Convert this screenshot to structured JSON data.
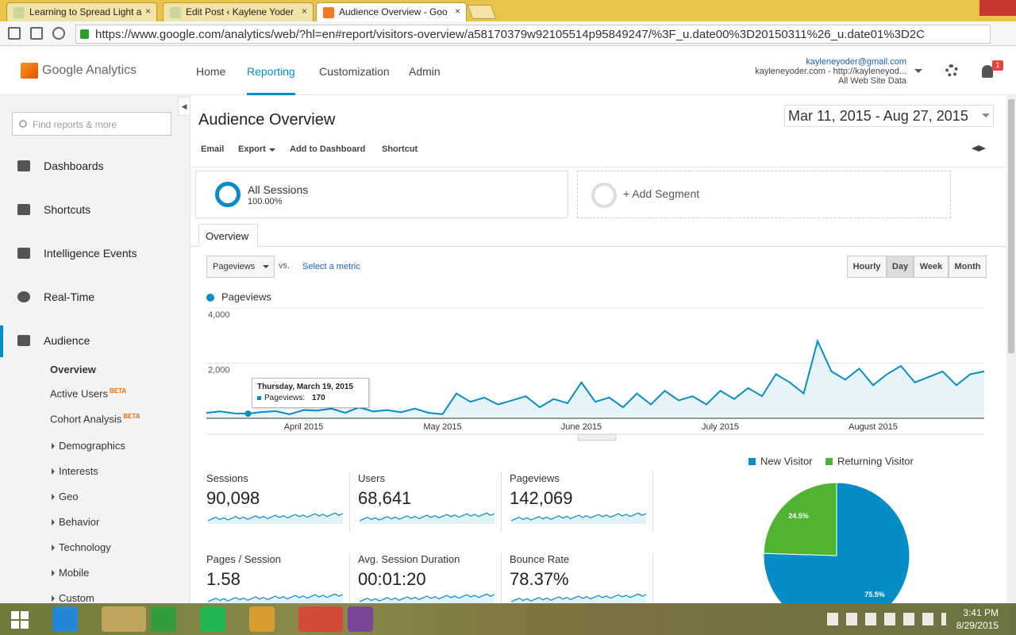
{
  "browser": {
    "tabs": [
      "Learning to Spread Light a",
      "Edit Post ‹ Kaylene Yoder",
      "Audience Overview - Goo"
    ],
    "url": "https://www.google.com/analytics/web/?hl=en#report/visitors-overview/a58170379w92105514p95849247/%3F_u.date00%3D20150311%26_u.date01%3D2C"
  },
  "header": {
    "logo": "Google Analytics",
    "nav": [
      "Home",
      "Reporting",
      "Customization",
      "Admin"
    ],
    "email": "kayleneyoder@gmail.com",
    "property": "kayleneyoder.com - http://kayleneyod...",
    "view": "All Web Site Data",
    "notifications": "1"
  },
  "sidebar": {
    "search": "Find reports & more",
    "items": [
      "Dashboards",
      "Shortcuts",
      "Intelligence Events",
      "Real-Time",
      "Audience"
    ],
    "subitems": [
      {
        "label": "Overview"
      },
      {
        "label": "Active Users",
        "badge": "BETA"
      },
      {
        "label": "Cohort Analysis",
        "badge": "BETA"
      },
      {
        "label": "Demographics"
      },
      {
        "label": "Interests"
      },
      {
        "label": "Geo"
      },
      {
        "label": "Behavior"
      },
      {
        "label": "Technology"
      },
      {
        "label": "Mobile"
      },
      {
        "label": "Custom"
      }
    ]
  },
  "report": {
    "title": "Audience Overview",
    "date_range": "Mar 11, 2015 - Aug 27, 2015",
    "actions": [
      "Email",
      "Export",
      "Add to Dashboard",
      "Shortcut"
    ],
    "segment": {
      "name": "All Sessions",
      "share": "100.00%"
    },
    "add_segment": "+ Add Segment",
    "tab": "Overview",
    "metric": "Pageviews",
    "vs": "vs.",
    "select_metric": "Select a metric",
    "granularity": [
      "Hourly",
      "Day",
      "Week",
      "Month"
    ],
    "tooltip": {
      "date": "Thursday, March 19, 2015",
      "label": "Pageviews:"
    },
    "metrics": [
      {
        "label": "Sessions",
        "value": "90,098"
      },
      {
        "label": "Users",
        "value": "68,641"
      },
      {
        "label": "Pageviews",
        "value": "142,069"
      },
      {
        "label": "Pages / Session",
        "value": "1.58"
      },
      {
        "label": "Avg. Session Duration",
        "value": "00:01:20"
      },
      {
        "label": "Bounce Rate",
        "value": "78.37%"
      }
    ]
  },
  "chart_data": [
    {
      "type": "line",
      "categories": [
        null,
        null,
        null,
        null,
        null,
        null,
        null,
        "April 2015",
        null,
        null,
        null,
        null,
        null,
        null,
        null,
        null,
        null,
        "May 2015",
        null,
        null,
        null,
        null,
        null,
        null,
        null,
        null,
        null,
        "June 2015",
        null,
        null,
        null,
        null,
        null,
        null,
        null,
        null,
        null,
        "July 2015",
        null,
        null,
        null,
        null,
        null,
        null,
        null,
        null,
        null,
        null,
        "August 2015",
        null,
        null,
        null,
        null,
        null,
        null,
        null,
        null
      ],
      "series": [
        {
          "name": "Pageviews",
          "color": "#058dc7",
          "values": [
            200,
            250,
            180,
            170,
            230,
            260,
            150,
            300,
            280,
            350,
            200,
            400,
            250,
            300,
            220,
            350,
            200,
            150,
            900,
            600,
            750,
            500,
            650,
            800,
            400,
            700,
            550,
            1300,
            600,
            750,
            400,
            900,
            500,
            1000,
            650,
            800,
            500,
            1000,
            700,
            1100,
            800,
            1600,
            1300,
            900,
            2800,
            1700,
            1400,
            1800,
            1200,
            1600,
            1900,
            1300,
            1500,
            1700,
            1200,
            1600,
            1700
          ]
        }
      ],
      "ylim": [
        0,
        4000
      ],
      "yticks": [
        {
          "value": 2000,
          "label": "2,000"
        },
        {
          "value": 4000,
          "label": "4,000"
        }
      ],
      "grid": true
    },
    {
      "type": "pie",
      "categories": [
        "New Visitor",
        "Returning Visitor"
      ],
      "values": [
        75.5,
        24.5
      ],
      "value_labels": [
        "75.5%",
        "24.5%"
      ],
      "colors": [
        "#058dc7",
        "#50b432"
      ]
    }
  ],
  "taskbar": {
    "time": "3:41 PM",
    "date": "8/29/2015"
  }
}
